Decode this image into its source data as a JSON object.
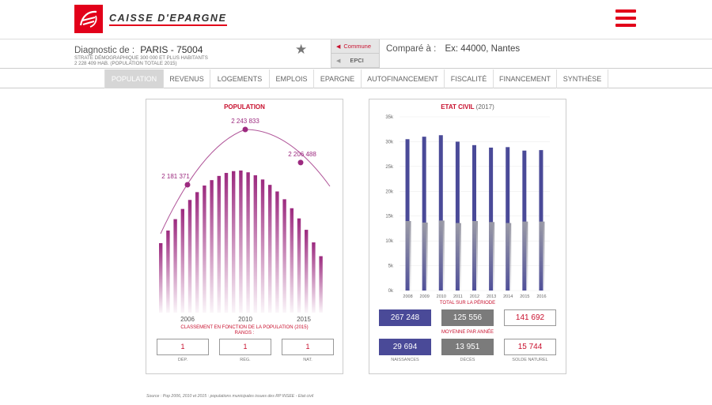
{
  "header": {
    "logo_text": "CAISSE D'EPARGNE",
    "menu_icon": "hamburger-menu-icon",
    "brand_color": "#e2001a"
  },
  "diagnostic": {
    "label": "Diagnostic de :",
    "city": "PARIS - 75004",
    "strata_line1": "STRATE DÉMOGRAPHIQUE 300 000 ET PLUS HABITANTS",
    "strata_line2": "2 228 409 HAB. (POPULATION TOTALE 2015)",
    "toggle_commune": "Commune",
    "toggle_epci": "EPCI",
    "compare_label": "Comparé à :",
    "compare_placeholder": "Ex: 44000, Nantes"
  },
  "tabs": [
    "POPULATION",
    "REVENUS",
    "LOGEMENTS",
    "EMPLOIS",
    "EPARGNE",
    "AUTOFINANCEMENT",
    "FISCALITÉ",
    "FINANCEMENT",
    "SYNTHÈSE"
  ],
  "active_tab": "POPULATION",
  "population_card": {
    "title": "POPULATION",
    "ranking_title": "CLASSEMENT EN FONCTION DE LA POPULATION (2015)",
    "ranking_sub": "RANGS :",
    "ranks": [
      {
        "value": "1",
        "label": "DÉP."
      },
      {
        "value": "1",
        "label": "RÉG."
      },
      {
        "value": "1",
        "label": "NAT."
      }
    ]
  },
  "etat_card": {
    "title": "ETAT CIVIL",
    "title_year": "(2017)",
    "total_label": "TOTAL SUR LA PÉRIODE",
    "avg_label": "MOYENNE PAR ANNÉE",
    "totals": [
      "267 248",
      "125 556",
      "141 692"
    ],
    "averages": [
      "29 694",
      "13 951",
      "15 744"
    ],
    "col_labels": [
      "NAISSANCES",
      "DÉCÈS",
      "SOLDE NATUREL"
    ]
  },
  "source": "Source : Pop 2006, 2010 et 2015 : populations municipales issues des RP INSEE - Etat civil",
  "chart_data": [
    {
      "type": "bar",
      "title": "POPULATION",
      "x_ticks": [
        "2006",
        "2010",
        "2015"
      ],
      "annotations": [
        {
          "year": "2006",
          "label": "2 181 371"
        },
        {
          "year": "2010",
          "label": "2 243 833"
        },
        {
          "year": "2015",
          "label": "2 206 488"
        }
      ],
      "annotation_values": [
        2181371,
        2243833,
        2206488
      ],
      "color": "#9c2a7f"
    },
    {
      "type": "bar",
      "title": "ETAT CIVIL (2017)",
      "categories": [
        "2008",
        "2009",
        "2010",
        "2011",
        "2012",
        "2013",
        "2014",
        "2015",
        "2016"
      ],
      "series": [
        {
          "name": "NAISSANCES",
          "color": "#4a4a98",
          "values": [
            30500,
            31000,
            31300,
            30000,
            29300,
            28800,
            28900,
            28200,
            28300
          ]
        },
        {
          "name": "DÉCÈS",
          "color": "#9a9aa6",
          "values": [
            14000,
            13700,
            14100,
            13600,
            14000,
            13800,
            13600,
            13900,
            13900
          ]
        }
      ],
      "y_ticks": [
        "0k",
        "5k",
        "10k",
        "15k",
        "20k",
        "25k",
        "30k",
        "35k"
      ],
      "ylim": [
        0,
        35000
      ]
    }
  ]
}
